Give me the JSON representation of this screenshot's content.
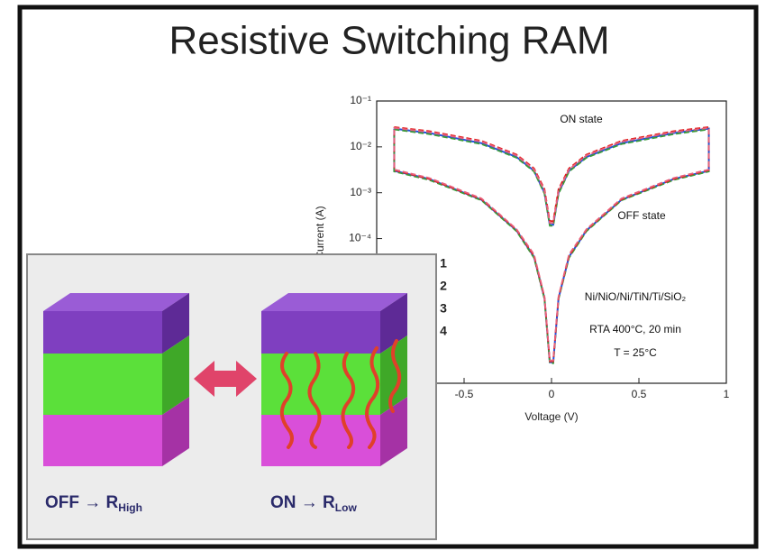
{
  "title": "Resistive Switching RAM",
  "chart_data": {
    "type": "line",
    "xlabel": "Voltage (V)",
    "ylabel": "Current (A)",
    "yscale": "log",
    "xlim": [
      -1,
      1
    ],
    "ylim": [
      7e-08,
      0.1
    ],
    "xticks": [
      -0.5,
      0,
      0.5,
      1
    ],
    "yticks": [
      {
        "value": 0.1,
        "label": "10⁻¹"
      },
      {
        "value": 0.01,
        "label": "10⁻²"
      },
      {
        "value": 0.001,
        "label": "10⁻³"
      },
      {
        "value": 0.0001,
        "label": "10⁻⁴"
      }
    ],
    "x": [
      -0.9,
      -0.7,
      -0.4,
      -0.2,
      -0.1,
      -0.04,
      -0.01,
      0.01,
      0.04,
      0.1,
      0.2,
      0.4,
      0.7,
      0.9,
      0.9,
      0.7,
      0.4,
      0.2,
      0.1,
      0.04,
      0.01,
      -0.01,
      -0.04,
      -0.1,
      -0.2,
      -0.4,
      -0.7,
      -0.9,
      -0.9
    ],
    "series": [
      {
        "name": "1",
        "color": "#e8607a",
        "style": "dashed",
        "values": [
          0.026,
          0.021,
          0.013,
          0.0065,
          0.0032,
          0.0011,
          0.00022,
          0.00022,
          0.0011,
          0.0032,
          0.0065,
          0.013,
          0.021,
          0.026,
          0.0032,
          0.0021,
          0.00075,
          0.00016,
          4.5e-05,
          5.5e-06,
          2.2e-07,
          2.2e-07,
          5.5e-06,
          4.5e-05,
          0.00016,
          0.00075,
          0.0021,
          0.0032,
          0.026
        ]
      },
      {
        "name": "2",
        "color": "#e02020",
        "style": "dashed",
        "values": [
          0.027,
          0.022,
          0.0135,
          0.0068,
          0.0034,
          0.0012,
          0.00024,
          0.00024,
          0.0012,
          0.0034,
          0.0068,
          0.0135,
          0.022,
          0.027,
          0.0031,
          0.002,
          0.00072,
          0.000155,
          4.2e-05,
          5.2e-06,
          2.1e-07,
          2.1e-07,
          5.2e-06,
          4.2e-05,
          0.000155,
          0.00072,
          0.002,
          0.0031,
          0.027
        ]
      },
      {
        "name": "3",
        "color": "#3a9a3a",
        "style": "dashed",
        "values": [
          0.024,
          0.019,
          0.0115,
          0.0058,
          0.0029,
          0.00095,
          0.00019,
          0.00019,
          0.00095,
          0.0029,
          0.0058,
          0.0115,
          0.019,
          0.024,
          0.0029,
          0.0019,
          0.00068,
          0.000145,
          3.8e-05,
          4.8e-06,
          1.9e-07,
          1.9e-07,
          4.8e-06,
          3.8e-05,
          0.000145,
          0.00068,
          0.0019,
          0.0029,
          0.024
        ]
      },
      {
        "name": "4",
        "color": "#2050e0",
        "style": "solid",
        "values": [
          0.025,
          0.02,
          0.012,
          0.006,
          0.003,
          0.001,
          0.0002,
          0.0002,
          0.001,
          0.003,
          0.006,
          0.012,
          0.02,
          0.025,
          0.003,
          0.002,
          0.0007,
          0.00015,
          4e-05,
          5e-06,
          2e-07,
          2e-07,
          5e-06,
          4e-05,
          0.00015,
          0.0007,
          0.002,
          0.003,
          0.025
        ]
      }
    ],
    "annotations": [
      "ON state",
      "OFF state",
      "Ni/NiO/Ni/TiN/Ti/SiO₂",
      "RTA 400°C, 20 min",
      "T = 25°C"
    ]
  },
  "diagram": {
    "off": {
      "label": "OFF → R",
      "sub": "High"
    },
    "on": {
      "label": "ON → R",
      "sub": "Low"
    }
  }
}
